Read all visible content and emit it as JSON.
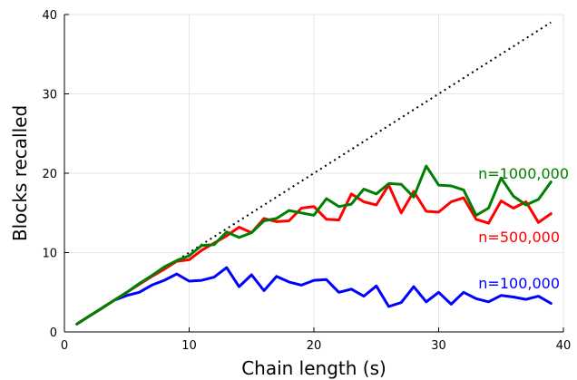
{
  "chart_data": {
    "type": "line",
    "xlabel": "Chain length (s)",
    "ylabel": "Blocks recalled",
    "xlim": [
      0,
      40
    ],
    "ylim": [
      0,
      40
    ],
    "xticks": [
      "0",
      "10",
      "20",
      "30",
      "40"
    ],
    "yticks": [
      "0",
      "10",
      "20",
      "30",
      "40"
    ],
    "grid": true,
    "legend": "none",
    "reference_line": {
      "style": "dotted",
      "color": "#000000",
      "x": [
        1,
        39
      ],
      "y": [
        1,
        39
      ]
    },
    "series": [
      {
        "name": "n=100,000",
        "color": "#0000ff",
        "x": [
          1,
          2,
          3,
          4,
          5,
          6,
          7,
          8,
          9,
          10,
          11,
          12,
          13,
          14,
          15,
          16,
          17,
          18,
          19,
          20,
          21,
          22,
          23,
          24,
          25,
          26,
          27,
          28,
          29,
          30,
          31,
          32,
          33,
          34,
          35,
          36,
          37,
          38,
          39
        ],
        "y": [
          1.0,
          2.0,
          3.0,
          4.0,
          4.6,
          5.0,
          5.9,
          6.5,
          7.3,
          6.4,
          6.5,
          6.9,
          8.1,
          5.7,
          7.2,
          5.2,
          7.0,
          6.3,
          5.9,
          6.5,
          6.6,
          5.0,
          5.4,
          4.5,
          5.8,
          3.2,
          3.7,
          5.7,
          3.8,
          5.0,
          3.5,
          5.0,
          4.2,
          3.8,
          4.6,
          4.4,
          4.1,
          4.5,
          3.6
        ]
      },
      {
        "name": "n=500,000",
        "color": "#ff0000",
        "x": [
          1,
          2,
          3,
          4,
          5,
          6,
          7,
          8,
          9,
          10,
          11,
          12,
          13,
          14,
          15,
          16,
          17,
          18,
          19,
          20,
          21,
          22,
          23,
          24,
          25,
          26,
          27,
          28,
          29,
          30,
          31,
          32,
          33,
          34,
          35,
          36,
          37,
          38,
          39
        ],
        "y": [
          1.0,
          2.0,
          3.0,
          4.0,
          5.0,
          6.0,
          7.0,
          7.9,
          8.9,
          9.1,
          10.3,
          11.2,
          12.1,
          13.2,
          12.5,
          14.3,
          13.9,
          14.0,
          15.6,
          15.8,
          14.2,
          14.1,
          17.4,
          16.4,
          16.0,
          18.5,
          15.0,
          17.7,
          15.2,
          15.1,
          16.4,
          16.9,
          14.2,
          13.7,
          16.5,
          15.6,
          16.4,
          13.8,
          14.9
        ]
      },
      {
        "name": "n=1000,000",
        "color": "#008000",
        "x": [
          1,
          2,
          3,
          4,
          5,
          6,
          7,
          8,
          9,
          10,
          11,
          12,
          13,
          14,
          15,
          16,
          17,
          18,
          19,
          20,
          21,
          22,
          23,
          24,
          25,
          26,
          27,
          28,
          29,
          30,
          31,
          32,
          33,
          34,
          35,
          36,
          37,
          38,
          39
        ],
        "y": [
          1.0,
          2.0,
          3.0,
          4.0,
          5.0,
          6.1,
          7.1,
          8.2,
          9.0,
          9.6,
          10.9,
          11.0,
          12.6,
          11.9,
          12.5,
          14.0,
          14.3,
          15.3,
          15.0,
          14.7,
          16.8,
          15.8,
          16.1,
          18.0,
          17.4,
          18.7,
          18.6,
          17.0,
          20.9,
          18.5,
          18.4,
          17.9,
          14.7,
          15.6,
          19.4,
          17.1,
          16.0,
          16.7,
          18.9
        ]
      }
    ]
  }
}
